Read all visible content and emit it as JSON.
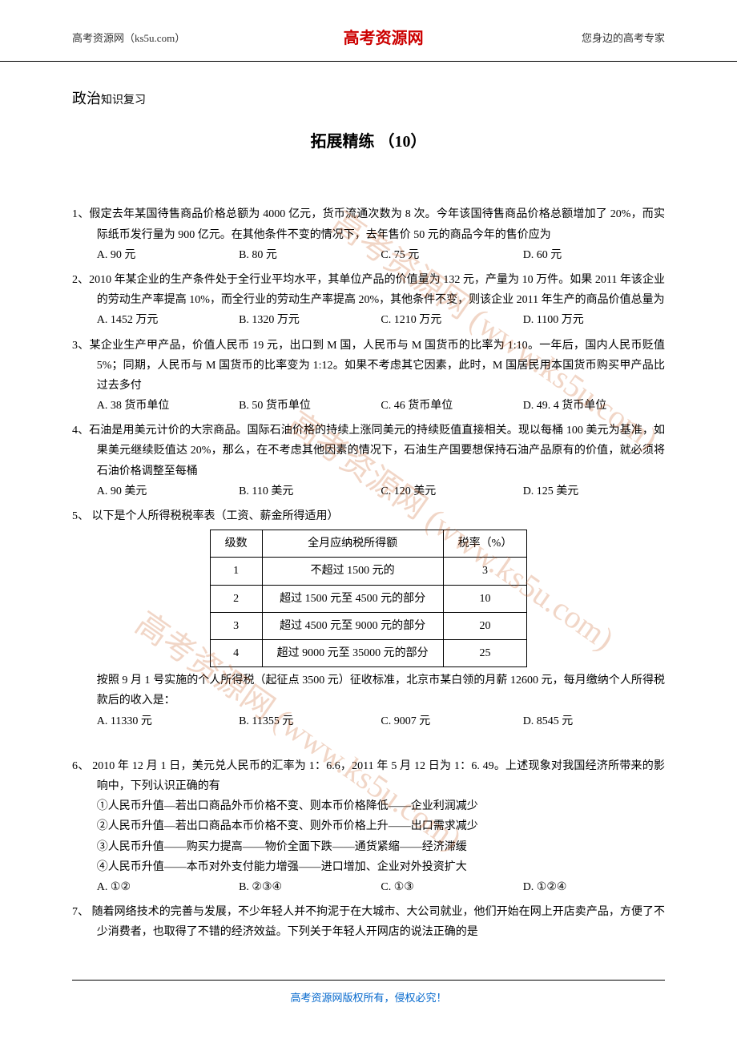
{
  "header": {
    "left": "高考资源网（ks5u.com）",
    "center": "高考资源网",
    "right": "您身边的高考专家"
  },
  "section": {
    "big": "政治",
    "small": "知识复习"
  },
  "title": "拓展精练 （10）",
  "watermark": "高考资源网 (www.ks5u.com)",
  "q1": {
    "num": "1、",
    "text": "假定去年某国待售商品价格总额为 4000 亿元，货币流通次数为 8 次。今年该国待售商品价格总额增加了 20%，而实际纸币发行量为 900 亿元。在其他条件不变的情况下，去年售价 50 元的商品今年的售价应为",
    "a": "A. 90 元",
    "b": "B. 80 元",
    "c": "C. 75 元",
    "d": "D. 60 元"
  },
  "q2": {
    "num": "2、",
    "text": "2010 年某企业的生产条件处于全行业平均水平，其单位产品的价值量为 132 元，产量为 10 万件。如果 2011 年该企业的劳动生产率提高 10%，而全行业的劳动生产率提高 20%，其他条件不变，则该企业 2011 年生产的商品价值总量为",
    "a": "A. 1452 万元",
    "b": "B. 1320 万元",
    "c": "C. 1210 万元",
    "d": "D. 1100 万元"
  },
  "q3": {
    "num": "3、",
    "text": "某企业生产甲产品，价值人民币 19 元，出口到 M 国，人民币与 M 国货币的比率为 1:10。一年后，国内人民币贬值 5%；同期，人民币与 M 国货币的比率变为 1:12。如果不考虑其它因素，此时，M 国居民用本国货币购买甲产品比过去多付",
    "a": "A. 38 货币单位",
    "b": "B. 50 货币单位",
    "c": "C. 46 货币单位",
    "d": "D. 49. 4 货币单位"
  },
  "q4": {
    "num": "4、",
    "text": "石油是用美元计价的大宗商品。国际石油价格的持续上涨同美元的持续贬值直接相关。现以每桶 100 美元为基准，如果美元继续贬值达 20%，那么，在不考虑其他因素的情况下，石油生产国要想保持石油产品原有的价值，就必须将石油价格调整至每桶",
    "a": "A. 90 美元",
    "b": "B. 110 美元",
    "c": "C. 120 美元",
    "d": "D. 125 美元"
  },
  "q5": {
    "num": "5、",
    "text": " 以下是个人所得税税率表（工资、薪金所得适用）",
    "text2": "按照 9 月 1 号实施的个人所得税（起征点 3500 元）征收标准，北京市某白领的月薪 12600 元，每月缴纳个人所得税款后的收入是：",
    "a": "A. 11330 元",
    "b": "B. 11355 元",
    "c": "C. 9007 元",
    "d": "D. 8545 元",
    "table": {
      "h1": "级数",
      "h2": "全月应纳税所得额",
      "h3": "税率（%）",
      "r1c1": "1",
      "r1c2": "不超过 1500 元的",
      "r1c3": "3",
      "r2c1": "2",
      "r2c2": "超过 1500 元至 4500 元的部分",
      "r2c3": "10",
      "r3c1": "3",
      "r3c2": "超过 4500 元至 9000 元的部分",
      "r3c3": "20",
      "r4c1": "4",
      "r4c2": "超过 9000 元至 35000 元的部分",
      "r4c3": "25"
    }
  },
  "q6": {
    "num": "6、",
    "text": " 2010 年 12 月 1 日，美元兑人民币的汇率为 1：6.6，2011 年 5 月 12 日为 1：6. 49。上述现象对我国经济所带来的影响中，下列认识正确的有",
    "l1": "①人民币升值—若出口商品外币价格不变、则本币价格降低——企业利润减少",
    "l2": "②人民币升值—若出口商品本币价格不变、则外币价格上升——出口需求减少",
    "l3": "③人民币升值——购买力提高——物价全面下跌——通货紧缩——经济滞缓",
    "l4": "④人民币升值——本币对外支付能力增强——进口增加、企业对外投资扩大",
    "a": "A. ①②",
    "b": "B. ②③④",
    "c": "C. ①③",
    "d": "D. ①②④"
  },
  "q7": {
    "num": "7、",
    "text": " 随着网络技术的完善与发展，不少年轻人并不拘泥于在大城市、大公司就业，他们开始在网上开店卖产品，方便了不少消费者，也取得了不错的经济效益。下列关于年轻人开网店的说法正确的是"
  },
  "footer": "高考资源网版权所有，侵权必究！"
}
